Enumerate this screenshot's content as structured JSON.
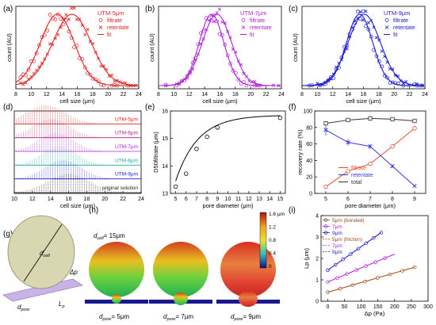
{
  "panel_letters": [
    "(a)",
    "(b)",
    "(c)",
    "(d)",
    "(e)",
    "(f)",
    "(g)",
    "(h)",
    "(i)"
  ],
  "colors": {
    "red": "#e02020",
    "purple": "#b020d8",
    "blue": "#1a1ad0",
    "black": "#222222",
    "teal": "#1aa8a8",
    "brown": "#a04a1a",
    "dark": "#333333"
  },
  "chart_data": [
    {
      "id": "a",
      "type": "scatter",
      "xlabel": "cell size (μm)",
      "ylabel": "count (AU)",
      "xlim": [
        8,
        24
      ],
      "xticks": [
        8,
        10,
        12,
        14,
        16,
        18,
        20,
        22,
        24
      ],
      "legend_title": "UTM-5μm",
      "legend_position": "top-right",
      "series": [
        {
          "name": "filtrate",
          "marker": "circle",
          "mu": 13.4,
          "sigma": 2.2
        },
        {
          "name": "retentate",
          "marker": "x",
          "mu": 15.3,
          "sigma": 2.5
        },
        {
          "name": "fit",
          "marker": "line"
        }
      ]
    },
    {
      "id": "b",
      "type": "scatter",
      "xlabel": "cell size (μm)",
      "ylabel": "count (AU)",
      "xlim": [
        8,
        24
      ],
      "xticks": [
        8,
        10,
        12,
        14,
        16,
        18,
        20,
        22,
        24
      ],
      "legend_title": "UTM-7μm",
      "legend_position": "top-right",
      "series": [
        {
          "name": "filtrate",
          "marker": "circle",
          "mu": 14.9,
          "sigma": 1.6
        },
        {
          "name": "retentate",
          "marker": "x",
          "mu": 15.6,
          "sigma": 1.9
        },
        {
          "name": "fit",
          "marker": "line"
        }
      ]
    },
    {
      "id": "c",
      "type": "scatter",
      "xlabel": "cell size (μm)",
      "ylabel": "count (AU)",
      "xlim": [
        8,
        24
      ],
      "xticks": [
        8,
        10,
        12,
        14,
        16,
        18,
        20,
        22,
        24
      ],
      "legend_title": "UTM-9μm",
      "legend_position": "top-right",
      "series": [
        {
          "name": "filtrate",
          "marker": "circle",
          "mu": 15.5,
          "sigma": 1.7
        },
        {
          "name": "retentate",
          "marker": "x",
          "mu": 16.1,
          "sigma": 2.1
        },
        {
          "name": "fit",
          "marker": "line"
        }
      ]
    },
    {
      "id": "d",
      "type": "area",
      "xlabel": "cell size (μm)",
      "xlim": [
        10,
        24
      ],
      "xticks": [
        10,
        12,
        14,
        16,
        18,
        20,
        22,
        24
      ],
      "rows": [
        {
          "label": "UTM-5μm",
          "color": "#e02020",
          "mu": 13.5,
          "sigma": 2.1
        },
        {
          "label": "UTM-6μm",
          "color": "#b0207a",
          "mu": 14.1,
          "sigma": 2.0
        },
        {
          "label": "UTM-7μm",
          "color": "#b020d8",
          "mu": 14.6,
          "sigma": 1.9
        },
        {
          "label": "UTM-8μm",
          "color": "#1aa8a8",
          "mu": 15.0,
          "sigma": 1.9
        },
        {
          "label": "UTM-9μm",
          "color": "#1a1ad0",
          "mu": 15.4,
          "sigma": 2.0
        },
        {
          "label": "original solution",
          "color": "#222222",
          "mu": 16.0,
          "sigma": 2.3
        }
      ]
    },
    {
      "id": "e",
      "type": "scatter",
      "xlabel": "pore diameter (μm)",
      "ylabel": "D50filtrate (μm)",
      "xlim": [
        4.5,
        15.5
      ],
      "ylim": [
        13,
        16
      ],
      "xticks": [
        5,
        6,
        7,
        8,
        9,
        10,
        11,
        12,
        13,
        14,
        15
      ],
      "yticks": [
        13,
        14,
        15,
        16
      ],
      "x": [
        5,
        6,
        7,
        8,
        9,
        15
      ],
      "y": [
        13.25,
        13.72,
        14.62,
        15.06,
        15.4,
        15.75
      ],
      "fit": {
        "a": 15.85,
        "b": -6.0,
        "c": 0.47
      }
    },
    {
      "id": "f",
      "type": "line",
      "xlabel": "pore diameter (μm)",
      "ylabel": "recovery rate (%)",
      "xlim": [
        4.5,
        9.5
      ],
      "ylim": [
        0,
        100
      ],
      "xticks": [
        5,
        6,
        7,
        8,
        9
      ],
      "yticks": [
        0,
        20,
        40,
        60,
        80,
        100
      ],
      "legend_position": "bottom-left",
      "x": [
        5,
        6,
        7,
        8,
        9
      ],
      "series": [
        {
          "name": "filtrate",
          "marker": "circle",
          "color": "#e05030",
          "values": [
            8,
            27,
            36,
            57,
            79
          ],
          "err": [
            1,
            1,
            2,
            1,
            3
          ]
        },
        {
          "name": "retentate",
          "marker": "x",
          "color": "#3a3ad0",
          "values": [
            77,
            62,
            57,
            33,
            9
          ],
          "err": [
            7,
            4,
            3,
            2,
            1
          ]
        },
        {
          "name": "total",
          "marker": "square",
          "color": "#333333",
          "values": [
            85,
            89,
            91,
            90,
            88
          ],
          "err": [
            3,
            2,
            3,
            1,
            2
          ]
        }
      ]
    },
    {
      "id": "i",
      "type": "line",
      "xlabel": "Δp (Pa)",
      "ylabel": "Lp (μm)",
      "xlim": [
        -20,
        300
      ],
      "ylim": [
        0,
        4
      ],
      "xticks": [
        0,
        50,
        100,
        150,
        200,
        250,
        300
      ],
      "yticks": [
        0,
        1,
        2,
        3,
        4
      ],
      "series": [
        {
          "name": "5μm (bonded)",
          "group": "bonded",
          "color": "#a04a1a",
          "x0": 0.42,
          "slope": 0.0045,
          "xmax": 260
        },
        {
          "name": "7μm",
          "group": "bonded",
          "color": "#b020d8",
          "x0": 0.9,
          "slope": 0.0065,
          "xmax": 200
        },
        {
          "name": "9μm",
          "group": "bonded",
          "color": "#1a1ad0",
          "x0": 1.45,
          "slope": 0.011,
          "xmax": 160
        },
        {
          "name": "5μm (friction)",
          "group": "friction",
          "color": "#a04a1a",
          "x0": 0.42,
          "slope": 0.0045,
          "xmax": 260
        },
        {
          "name": "7μm",
          "group": "friction",
          "color": "#b020d8",
          "x0": 0.9,
          "slope": 0.0065,
          "xmax": 200
        },
        {
          "name": "9μm",
          "group": "friction",
          "color": "#1a1ad0",
          "x0": 1.45,
          "slope": 0.011,
          "xmax": 160
        }
      ]
    }
  ],
  "schematic_g": {
    "d_cell": "d",
    "d_cell_sub": "cell",
    "d_pore": "d",
    "d_pore_sub": "pore",
    "dp": "Δp",
    "lp": "L",
    "lp_sub": "p"
  },
  "panel_h": {
    "dcell_label": "d",
    "dcell_sub": "cell",
    "dcell_value": "= 15μm",
    "captions": [
      {
        "d": "d",
        "sub": "pore",
        "val": "= 5μm"
      },
      {
        "d": "d",
        "sub": "pore",
        "val": "= 7μm"
      },
      {
        "d": "d",
        "sub": "pore",
        "val": "= 9μm"
      }
    ],
    "colorbar": {
      "ticks": [
        "1.6 μm",
        "1.2",
        "0.8",
        "0.4",
        "0"
      ]
    }
  }
}
